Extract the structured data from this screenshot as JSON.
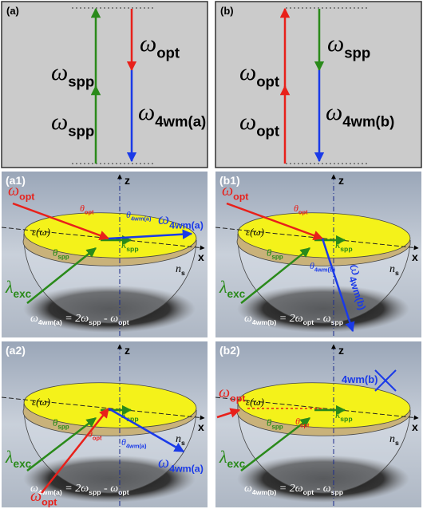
{
  "panels": {
    "a": {
      "label": "(a)",
      "texts": [
        [
          "ω",
          "spp"
        ],
        [
          "ω",
          "spp"
        ],
        [
          "ω",
          "opt"
        ],
        [
          "ω",
          "4wm(a)"
        ]
      ]
    },
    "b": {
      "label": "(b)",
      "texts": [
        [
          "ω",
          "opt"
        ],
        [
          "ω",
          "opt"
        ],
        [
          "ω",
          "spp"
        ],
        [
          "ω",
          "4wm(b)"
        ]
      ]
    },
    "a1": {
      "label": "(a1)",
      "z": "z",
      "x": "x",
      "eps": "ε(ω)",
      "opt": [
        "ω",
        "opt"
      ],
      "theta_opt": [
        "θ",
        "opt"
      ],
      "theta_4wm": [
        "θ",
        "4wm(a)"
      ],
      "wm": [
        "ω",
        "4wm(a)"
      ],
      "kspp": [
        "k",
        "spp"
      ],
      "theta_spp": [
        "θ",
        "spp"
      ],
      "ns": [
        "n",
        "s"
      ],
      "lexc": [
        "λ",
        "exc"
      ],
      "eq": [
        "ω",
        "4wm(a)",
        " = 2ω",
        "spp",
        " - ω",
        "opt"
      ]
    },
    "b1": {
      "label": "(b1)",
      "z": "z",
      "x": "x",
      "eps": "ε(ω)",
      "opt": [
        "ω",
        "opt"
      ],
      "theta_opt": [
        "θ",
        "opt"
      ],
      "theta_4wm": [
        "θ",
        "4wm(b)"
      ],
      "wm": [
        "ω",
        "4wm(b)"
      ],
      "kspp": [
        "k",
        "spp"
      ],
      "theta_spp": [
        "θ",
        "spp"
      ],
      "ns": [
        "n",
        "s"
      ],
      "lexc": [
        "λ",
        "exc"
      ],
      "eq": [
        "ω",
        "4wm(b)",
        " = 2ω",
        "opt",
        " - ω",
        "spp"
      ]
    },
    "a2": {
      "label": "(a2)",
      "z": "z",
      "x": "x",
      "eps": "ε(ω)",
      "opt": [
        "ω",
        "opt"
      ],
      "theta_opt": [
        "θ",
        "opt"
      ],
      "theta_4wm": [
        "θ",
        "4wm(a)"
      ],
      "wm": [
        "ω",
        "4wm(a)"
      ],
      "kspp": [
        "k",
        "spp"
      ],
      "theta_spp": [
        "θ",
        "spp"
      ],
      "ns": [
        "n",
        "s"
      ],
      "lexc": [
        "λ",
        "exc"
      ],
      "eq": [
        "ω",
        "4wm(a)",
        " = 2ω",
        "spp",
        " - ω",
        "opt"
      ]
    },
    "b2": {
      "label": "(b2)",
      "z": "z",
      "x": "x",
      "eps": "ε(ω)",
      "opt": [
        "ω",
        "opt"
      ],
      "theta_opt": [
        "θ",
        "opt"
      ],
      "kspp": [
        "k",
        "spp"
      ],
      "theta_spp": [
        "θ",
        "spp"
      ],
      "ns": [
        "n",
        "s"
      ],
      "lexc": [
        "λ",
        "exc"
      ],
      "crossed": "4wm(b)",
      "eq": [
        "ω",
        "4wm(b)",
        " = 2ω",
        "opt",
        " - ω",
        "spp"
      ]
    }
  }
}
